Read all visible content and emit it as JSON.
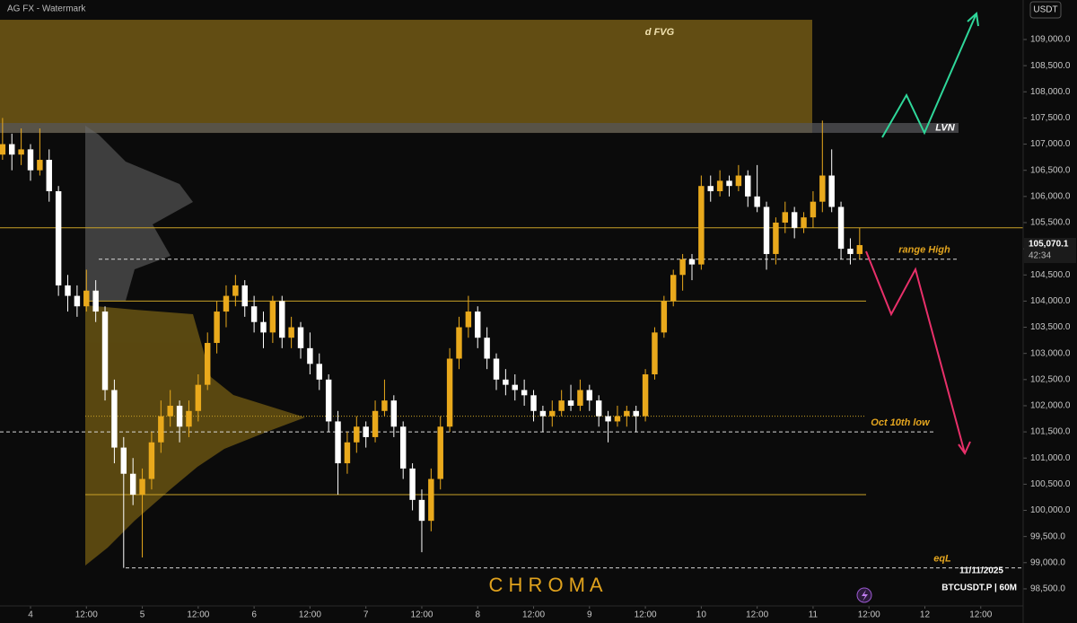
{
  "chart_data": {
    "type": "candlestick",
    "title": "AG FX - Watermark",
    "currency": "USDT",
    "symbol": "BTCUSDT.P | 60M",
    "date": "11/11/2025",
    "watermark": "C H R O M A",
    "last_price": "105,070.1",
    "countdown": "42:34",
    "up_color": "#e9a91c",
    "down_color": "#ffffff",
    "ylim": [
      98173,
      109755
    ],
    "xlim": [
      -6.55,
      213.1
    ],
    "yticks": [
      {
        "value": 98500,
        "label": "98,500.0"
      },
      {
        "value": 99000,
        "label": "99,000.0"
      },
      {
        "value": 99500,
        "label": "99,500.0"
      },
      {
        "value": 100000,
        "label": "100,000.0"
      },
      {
        "value": 100500,
        "label": "100,500.0"
      },
      {
        "value": 101000,
        "label": "101,000.0"
      },
      {
        "value": 101500,
        "label": "101,500.0"
      },
      {
        "value": 102000,
        "label": "102,000.0"
      },
      {
        "value": 102500,
        "label": "102,500.0"
      },
      {
        "value": 103000,
        "label": "103,000.0"
      },
      {
        "value": 103500,
        "label": "103,500.0"
      },
      {
        "value": 104000,
        "label": "104,000.0"
      },
      {
        "value": 104500,
        "label": "104,500.0"
      },
      {
        "value": 105000,
        "label": "105,000.0"
      },
      {
        "value": 105500,
        "label": "105,500.0"
      },
      {
        "value": 106000,
        "label": "106,000.0"
      },
      {
        "value": 106500,
        "label": "106,500.0"
      },
      {
        "value": 107000,
        "label": "107,000.0"
      },
      {
        "value": 107500,
        "label": "107,500.0"
      },
      {
        "value": 108000,
        "label": "108,000.0"
      },
      {
        "value": 108500,
        "label": "108,500.0"
      },
      {
        "value": 109000,
        "label": "109,000.0"
      }
    ],
    "xticks": [
      {
        "value": 0,
        "label": "4"
      },
      {
        "value": 12,
        "label": "12:00"
      },
      {
        "value": 24,
        "label": "5"
      },
      {
        "value": 36,
        "label": "12:00"
      },
      {
        "value": 48,
        "label": "6"
      },
      {
        "value": 60,
        "label": "12:00"
      },
      {
        "value": 72,
        "label": "7"
      },
      {
        "value": 84,
        "label": "12:00"
      },
      {
        "value": 96,
        "label": "8"
      },
      {
        "value": 108,
        "label": "12:00"
      },
      {
        "value": 120,
        "label": "9"
      },
      {
        "value": 132,
        "label": "12:00"
      },
      {
        "value": 144,
        "label": "10"
      },
      {
        "value": 156,
        "label": "12:00"
      },
      {
        "value": 168,
        "label": "11"
      },
      {
        "value": 180,
        "label": "12:00"
      },
      {
        "value": 192,
        "label": "12"
      },
      {
        "value": 204,
        "label": "12:00"
      }
    ],
    "zones": [
      {
        "label": "d FVG",
        "from": 107215,
        "to": 109377,
        "color": "#6b5414"
      },
      {
        "label": "LVN",
        "from": 107215,
        "to": 107404,
        "color": "#55555a"
      }
    ],
    "levels": [
      {
        "value": 105400,
        "style": "solid",
        "color": "#c9a227"
      },
      {
        "value": 104800,
        "style": "dashed",
        "color": "#d8d8d8",
        "label": "range High"
      },
      {
        "value": 104000,
        "style": "solid",
        "color": "#c9a227"
      },
      {
        "value": 101800,
        "style": "dotted",
        "color": "#c9a227"
      },
      {
        "value": 101500,
        "style": "dashed",
        "color": "#d8d8d8",
        "label": "Oct 10th low"
      },
      {
        "value": 100300,
        "style": "solid",
        "color": "#c9a227"
      },
      {
        "value": 98900,
        "style": "dashed",
        "color": "#d8d8d8",
        "label": "eqL"
      }
    ],
    "x": [
      -6,
      -4,
      -2,
      0,
      2,
      4,
      6,
      8,
      10,
      12,
      14,
      16,
      18,
      20,
      22,
      24,
      26,
      28,
      30,
      32,
      34,
      36,
      38,
      40,
      42,
      44,
      46,
      48,
      50,
      52,
      54,
      56,
      58,
      60,
      62,
      64,
      66,
      68,
      70,
      72,
      74,
      76,
      78,
      80,
      82,
      84,
      86,
      88,
      90,
      92,
      94,
      96,
      98,
      100,
      102,
      104,
      106,
      108,
      110,
      112,
      114,
      116,
      118,
      120,
      122,
      124,
      126,
      128,
      130,
      132,
      134,
      136,
      138,
      140,
      142,
      144,
      146,
      148,
      150,
      152,
      154,
      156,
      158,
      160,
      162,
      164,
      166,
      168,
      170,
      172,
      174,
      176,
      178
    ],
    "candles": [
      [
        106800,
        107500,
        106700,
        107000
      ],
      [
        107000,
        107200,
        106500,
        106800
      ],
      [
        106800,
        107300,
        106600,
        106900
      ],
      [
        106900,
        107000,
        106300,
        106500
      ],
      [
        106500,
        107300,
        106400,
        106700
      ],
      [
        106700,
        106900,
        105900,
        106100
      ],
      [
        106100,
        106200,
        104100,
        104300
      ],
      [
        104300,
        104500,
        103800,
        104100
      ],
      [
        104100,
        104300,
        103700,
        103900
      ],
      [
        103900,
        104600,
        103800,
        104200
      ],
      [
        104200,
        104400,
        103600,
        103800
      ],
      [
        103800,
        103900,
        102100,
        102300
      ],
      [
        102300,
        102500,
        100900,
        101200
      ],
      [
        101200,
        101400,
        98900,
        100700
      ],
      [
        100700,
        101000,
        100100,
        100300
      ],
      [
        100300,
        100800,
        99100,
        100600
      ],
      [
        100600,
        101500,
        100400,
        101300
      ],
      [
        101300,
        102100,
        101100,
        101800
      ],
      [
        101800,
        102300,
        101600,
        102000
      ],
      [
        102000,
        102100,
        101300,
        101600
      ],
      [
        101600,
        102100,
        101400,
        101900
      ],
      [
        101900,
        102600,
        101700,
        102400
      ],
      [
        102400,
        103400,
        102300,
        103200
      ],
      [
        103200,
        104000,
        103000,
        103800
      ],
      [
        103800,
        104300,
        103500,
        104100
      ],
      [
        104100,
        104500,
        103900,
        104300
      ],
      [
        104300,
        104400,
        103700,
        103900
      ],
      [
        103900,
        104100,
        103400,
        103600
      ],
      [
        103600,
        103800,
        103100,
        103400
      ],
      [
        103400,
        104100,
        103200,
        104000
      ],
      [
        104000,
        104100,
        103100,
        103300
      ],
      [
        103300,
        103700,
        103100,
        103500
      ],
      [
        103500,
        103600,
        102900,
        103100
      ],
      [
        103100,
        103400,
        102600,
        102800
      ],
      [
        102800,
        103000,
        102300,
        102500
      ],
      [
        102500,
        102600,
        101500,
        101700
      ],
      [
        101700,
        101900,
        100300,
        100900
      ],
      [
        100900,
        101500,
        100700,
        101300
      ],
      [
        101300,
        101800,
        101100,
        101600
      ],
      [
        101600,
        101700,
        101200,
        101400
      ],
      [
        101400,
        102100,
        101300,
        101900
      ],
      [
        101900,
        102500,
        101800,
        102100
      ],
      [
        102100,
        102200,
        101400,
        101600
      ],
      [
        101600,
        101700,
        100600,
        100800
      ],
      [
        100800,
        100900,
        100000,
        100200
      ],
      [
        100200,
        100400,
        99200,
        99800
      ],
      [
        99800,
        100800,
        99600,
        100600
      ],
      [
        100600,
        101800,
        100400,
        101600
      ],
      [
        101600,
        103100,
        101500,
        102900
      ],
      [
        102900,
        103700,
        102700,
        103500
      ],
      [
        103500,
        104100,
        103300,
        103800
      ],
      [
        103800,
        103900,
        103100,
        103300
      ],
      [
        103300,
        103500,
        102700,
        102900
      ],
      [
        102900,
        103000,
        102300,
        102500
      ],
      [
        102500,
        102700,
        102200,
        102400
      ],
      [
        102400,
        102600,
        102100,
        102300
      ],
      [
        102300,
        102500,
        102000,
        102200
      ],
      [
        102200,
        102300,
        101700,
        101900
      ],
      [
        101900,
        102000,
        101500,
        101800
      ],
      [
        101800,
        102100,
        101600,
        101900
      ],
      [
        101900,
        102300,
        101800,
        102100
      ],
      [
        102100,
        102400,
        101900,
        102000
      ],
      [
        102000,
        102500,
        101900,
        102300
      ],
      [
        102300,
        102400,
        101900,
        102100
      ],
      [
        102100,
        102200,
        101600,
        101800
      ],
      [
        101800,
        101900,
        101300,
        101700
      ],
      [
        101700,
        102000,
        101600,
        101800
      ],
      [
        101800,
        102000,
        101600,
        101900
      ],
      [
        101900,
        102000,
        101500,
        101800
      ],
      [
        101800,
        102700,
        101700,
        102600
      ],
      [
        102600,
        103500,
        102500,
        103400
      ],
      [
        103400,
        104100,
        103300,
        104000
      ],
      [
        104000,
        104600,
        103900,
        104500
      ],
      [
        104500,
        104900,
        104200,
        104800
      ],
      [
        104800,
        104900,
        104400,
        104700
      ],
      [
        104700,
        106400,
        104600,
        106200
      ],
      [
        106200,
        106400,
        105900,
        106100
      ],
      [
        106100,
        106500,
        106000,
        106300
      ],
      [
        106300,
        106400,
        106000,
        106200
      ],
      [
        106200,
        106600,
        106100,
        106400
      ],
      [
        106400,
        106500,
        105800,
        106000
      ],
      [
        106000,
        106600,
        105700,
        105800
      ],
      [
        105800,
        105900,
        104600,
        104900
      ],
      [
        104900,
        105600,
        104700,
        105500
      ],
      [
        105500,
        105900,
        105300,
        105700
      ],
      [
        105700,
        105800,
        105200,
        105400
      ],
      [
        105400,
        105700,
        105300,
        105600
      ],
      [
        105600,
        106100,
        105400,
        105900
      ],
      [
        105900,
        107450,
        105700,
        106400
      ],
      [
        106400,
        106900,
        105700,
        105800
      ],
      [
        105800,
        105900,
        104800,
        105000
      ],
      [
        105000,
        105200,
        104700,
        104900
      ],
      [
        104900,
        105400,
        104800,
        105070.1
      ]
    ]
  }
}
